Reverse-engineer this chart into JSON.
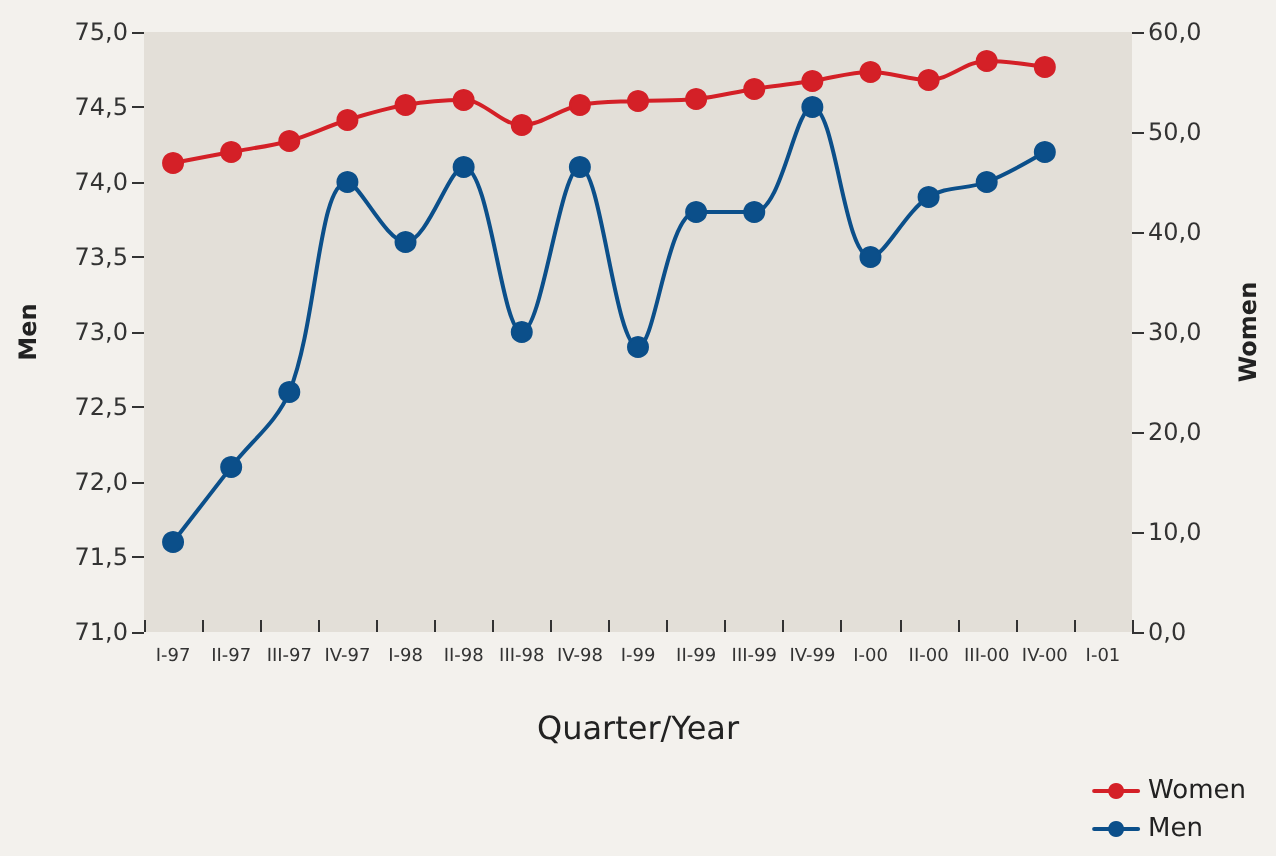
{
  "chart_data": {
    "type": "line",
    "xlabel": "Quarter/Year",
    "ylabel": "Men",
    "y2label": "Women",
    "categories": [
      "I-97",
      "II-97",
      "III-97",
      "IV-97",
      "I-98",
      "II-98",
      "III-98",
      "IV-98",
      "I-99",
      "II-99",
      "III-99",
      "IV-99",
      "I-00",
      "II-00",
      "III-00",
      "IV-00",
      "I-01"
    ],
    "series": [
      {
        "name": "Women",
        "color": "#d42027",
        "axis": "y2",
        "values": [
          46.9,
          48.0,
          49.1,
          51.2,
          52.7,
          53.2,
          50.7,
          52.7,
          53.1,
          53.3,
          54.3,
          55.1,
          56.0,
          55.2,
          57.1,
          56.5,
          null
        ]
      },
      {
        "name": "Men",
        "color": "#0b4f8a",
        "values": [
          71.6,
          72.1,
          72.6,
          74.0,
          73.6,
          74.1,
          73.0,
          74.1,
          72.9,
          73.8,
          73.8,
          74.5,
          73.5,
          73.9,
          74.0,
          74.2,
          null
        ]
      }
    ],
    "ylim": [
      71,
      75
    ],
    "yticks": [
      {
        "value": 71,
        "label": "71,0"
      },
      {
        "value": 71.5,
        "label": "71,5"
      },
      {
        "value": 72,
        "label": "72,0"
      },
      {
        "value": 72.5,
        "label": "72,5"
      },
      {
        "value": 73,
        "label": "73,0"
      },
      {
        "value": 73.5,
        "label": "73,5"
      },
      {
        "value": 74,
        "label": "74,0"
      },
      {
        "value": 74.5,
        "label": "74,5"
      },
      {
        "value": 75,
        "label": "75,0"
      }
    ],
    "y2lim": [
      0,
      60
    ],
    "y2ticks": [
      {
        "value": 0,
        "label": "0,0"
      },
      {
        "value": 10,
        "label": "10,0"
      },
      {
        "value": 20,
        "label": "20,0"
      },
      {
        "value": 30,
        "label": "30,0"
      },
      {
        "value": 40,
        "label": "40,0"
      },
      {
        "value": 50,
        "label": "50,0"
      },
      {
        "value": 60,
        "label": "60,0"
      }
    ],
    "grid": false,
    "legend": "bottom right",
    "marker": "circle",
    "line_style": "solid"
  }
}
